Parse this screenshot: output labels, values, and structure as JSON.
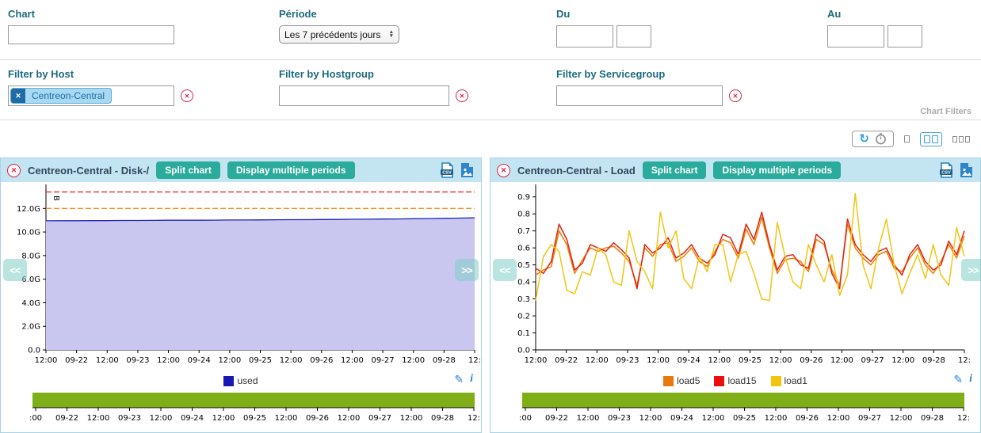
{
  "colors": {
    "label_teal": "#1d6b7d",
    "button_green": "#2aab9b",
    "header_blue": "#c3e4f1",
    "panel_border": "#a9d4e6",
    "timeline_green": "#7fae16",
    "danger_red": "#d9244a",
    "icon_blue": "#2b7fd4"
  },
  "filters": {
    "chart_label": "Chart",
    "chart_value": "",
    "periode_label": "Période",
    "periode_value": "Les 7 précédents jours",
    "du_label": "Du",
    "du_date": "",
    "du_time": "",
    "au_label": "Au",
    "au_date": "",
    "au_time": "",
    "host_label": "Filter by Host",
    "host_tag": "Centreon-Central",
    "host_tag_remove": "x",
    "hostgroup_label": "Filter by Hostgroup",
    "hostgroup_value": "",
    "servicegroup_label": "Filter by Servicegroup",
    "servicegroup_value": "",
    "clear_glyph": "✕",
    "section_label": "Chart Filters"
  },
  "toolbar": {
    "refresh_icon": "refresh",
    "timer_icon": "timer",
    "layout_options": [
      "1-column",
      "2-columns",
      "3-columns"
    ],
    "active_layout": "2-columns"
  },
  "panels": [
    {
      "title": "Centreon-Central - Disk-/",
      "split_btn": "Split chart",
      "periods_btn": "Display multiple periods",
      "csv_icon_label": "CSV",
      "nav_prev": "<<",
      "nav_next": ">>",
      "legend": [
        {
          "label": "used",
          "color": "#1b17b4"
        }
      ]
    },
    {
      "title": "Centreon-Central - Load",
      "split_btn": "Split chart",
      "periods_btn": "Display multiple periods",
      "csv_icon_label": "CSV",
      "nav_prev": "<<",
      "nav_next": ">>",
      "legend": [
        {
          "label": "load5",
          "color": "#e8790d"
        },
        {
          "label": "load15",
          "color": "#ea100f"
        },
        {
          "label": "load1",
          "color": "#f2c40d"
        }
      ]
    }
  ],
  "chart_data": [
    {
      "type": "area",
      "title": "Centreon-Central - Disk-/",
      "unit": "B",
      "ylim": [
        0,
        13.7
      ],
      "y_ticks": [
        {
          "v": 0,
          "label": "0.0"
        },
        {
          "v": 2,
          "label": "2.0G"
        },
        {
          "v": 4,
          "label": "4.0G"
        },
        {
          "v": 6,
          "label": "6.0G"
        },
        {
          "v": 8,
          "label": "8.0G"
        },
        {
          "v": 10,
          "label": "10.0G"
        },
        {
          "v": 12,
          "label": "12.0G"
        }
      ],
      "x_ticks": [
        "12:00",
        "09-22",
        "12:00",
        "09-23",
        "12:00",
        "09-24",
        "12:00",
        "09-25",
        "12:00",
        "09-26",
        "12:00",
        "09-27",
        "12:00",
        "09-28",
        "12:"
      ],
      "x_ticks_mini": [
        ":00",
        "09-22",
        "12:00",
        "09-23",
        "12:00",
        "09-24",
        "12:00",
        "09-25",
        "12:00",
        "09-26",
        "12:00",
        "09-27",
        "12:00",
        "09-28",
        "12:"
      ],
      "thresholds": [
        {
          "name": "warning",
          "value": 12.0,
          "color": "#ff8d13"
        },
        {
          "name": "critical",
          "value": 13.4,
          "color": "#e31a1c"
        }
      ],
      "series": [
        {
          "name": "used",
          "color": "#2423b0",
          "fill": "#c9c7ef",
          "values": [
            10.95,
            10.96,
            10.96,
            10.97,
            10.97,
            10.98,
            10.98,
            10.99,
            11.0,
            11.0,
            11.0,
            11.01,
            11.02,
            11.02,
            11.03,
            11.04,
            11.05,
            11.05,
            11.06,
            11.07,
            11.08,
            11.09,
            11.1,
            11.11,
            11.13,
            11.14,
            11.16,
            11.18,
            11.2
          ]
        }
      ]
    },
    {
      "type": "line",
      "title": "Centreon-Central - Load",
      "unit": "",
      "ylim": [
        0,
        0.95
      ],
      "y_ticks": [
        {
          "v": 0,
          "label": "0.0"
        },
        {
          "v": 0.1,
          "label": "0.1"
        },
        {
          "v": 0.2,
          "label": "0.2"
        },
        {
          "v": 0.3,
          "label": "0.3"
        },
        {
          "v": 0.4,
          "label": "0.4"
        },
        {
          "v": 0.5,
          "label": "0.5"
        },
        {
          "v": 0.6,
          "label": "0.6"
        },
        {
          "v": 0.7,
          "label": "0.7"
        },
        {
          "v": 0.8,
          "label": "0.8"
        },
        {
          "v": 0.9,
          "label": "0.9"
        }
      ],
      "x_ticks": [
        "12:00",
        "09-22",
        "12:00",
        "09-23",
        "12:00",
        "09-24",
        "12:00",
        "09-25",
        "12:00",
        "09-26",
        "12:00",
        "09-27",
        "12:00",
        "09-28",
        "12:"
      ],
      "x_ticks_mini": [
        ":00",
        "09-22",
        "12:00",
        "09-23",
        "12:00",
        "09-24",
        "12:00",
        "09-25",
        "12:00",
        "09-26",
        "12:00",
        "09-27",
        "12:00",
        "09-28",
        "12:"
      ],
      "thresholds": [],
      "series": [
        {
          "name": "load5",
          "color": "#ef7d00",
          "values": [
            0.44,
            0.47,
            0.49,
            0.7,
            0.62,
            0.45,
            0.53,
            0.6,
            0.58,
            0.6,
            0.61,
            0.57,
            0.52,
            0.38,
            0.6,
            0.55,
            0.62,
            0.63,
            0.52,
            0.55,
            0.6,
            0.52,
            0.49,
            0.58,
            0.65,
            0.63,
            0.54,
            0.71,
            0.62,
            0.78,
            0.6,
            0.45,
            0.53,
            0.54,
            0.52,
            0.46,
            0.65,
            0.62,
            0.47,
            0.38,
            0.74,
            0.6,
            0.54,
            0.5,
            0.56,
            0.58,
            0.48,
            0.46,
            0.54,
            0.6,
            0.5,
            0.45,
            0.52,
            0.62,
            0.54,
            0.67
          ]
        },
        {
          "name": "load15",
          "color": "#e02413",
          "values": [
            0.48,
            0.45,
            0.52,
            0.74,
            0.65,
            0.47,
            0.51,
            0.62,
            0.6,
            0.58,
            0.63,
            0.59,
            0.54,
            0.36,
            0.62,
            0.57,
            0.6,
            0.66,
            0.54,
            0.57,
            0.62,
            0.54,
            0.51,
            0.56,
            0.68,
            0.66,
            0.56,
            0.74,
            0.65,
            0.81,
            0.62,
            0.47,
            0.55,
            0.56,
            0.5,
            0.48,
            0.68,
            0.64,
            0.45,
            0.36,
            0.77,
            0.62,
            0.56,
            0.52,
            0.58,
            0.6,
            0.5,
            0.44,
            0.56,
            0.62,
            0.52,
            0.47,
            0.5,
            0.64,
            0.56,
            0.7
          ]
        },
        {
          "name": "load1",
          "color": "#f0c514",
          "values": [
            0.29,
            0.55,
            0.62,
            0.58,
            0.35,
            0.33,
            0.46,
            0.44,
            0.6,
            0.56,
            0.4,
            0.38,
            0.7,
            0.52,
            0.46,
            0.36,
            0.81,
            0.6,
            0.7,
            0.42,
            0.36,
            0.55,
            0.46,
            0.62,
            0.62,
            0.4,
            0.56,
            0.58,
            0.45,
            0.3,
            0.29,
            0.75,
            0.55,
            0.4,
            0.36,
            0.62,
            0.5,
            0.4,
            0.56,
            0.32,
            0.44,
            0.92,
            0.5,
            0.36,
            0.6,
            0.77,
            0.5,
            0.33,
            0.45,
            0.56,
            0.42,
            0.62,
            0.44,
            0.38,
            0.72,
            0.55
          ]
        }
      ]
    }
  ]
}
